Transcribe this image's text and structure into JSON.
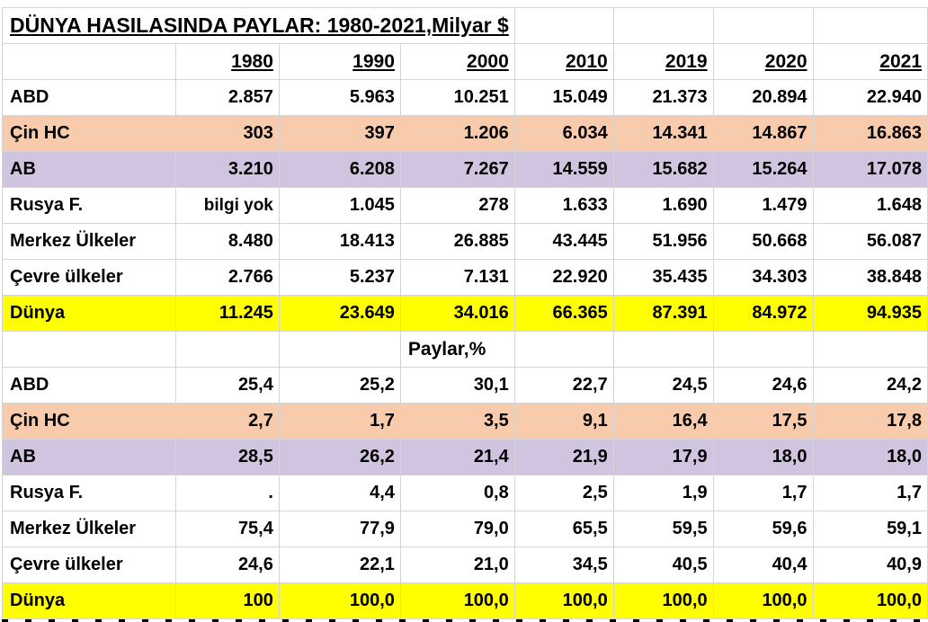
{
  "title": "DÜNYA HASILASINDA PAYLAR: 1980-2021,Milyar $",
  "years": [
    "1980",
    "1990",
    "2000",
    "2010",
    "2019",
    "2020",
    "2021"
  ],
  "colors": {
    "china_row": "#f8cbad",
    "eu_row": "#d0c4e0",
    "world_row": "#ffff00"
  },
  "gdp_rows": [
    {
      "label": "ABD",
      "values": [
        "2.857",
        "5.963",
        "10.251",
        "15.049",
        "21.373",
        "20.894",
        "22.940"
      ]
    },
    {
      "label": "Çin HC",
      "values": [
        "303",
        "397",
        "1.206",
        "6.034",
        "14.341",
        "14.867",
        "16.863"
      ]
    },
    {
      "label": "AB",
      "values": [
        "3.210",
        "6.208",
        "7.267",
        "14.559",
        "15.682",
        "15.264",
        "17.078"
      ]
    },
    {
      "label": "Rusya F.",
      "values": [
        "bilgi yok",
        "1.045",
        "278",
        "1.633",
        "1.690",
        "1.479",
        "1.648"
      ]
    },
    {
      "label": "Merkez Ülkeler",
      "values": [
        "8.480",
        "18.413",
        "26.885",
        "43.445",
        "51.956",
        "50.668",
        "56.087"
      ]
    },
    {
      "label": "Çevre ülkeler",
      "values": [
        "2.766",
        "5.237",
        "7.131",
        "22.920",
        "35.435",
        "34.303",
        "38.848"
      ]
    },
    {
      "label": "Dünya",
      "values": [
        "11.245",
        "23.649",
        "34.016",
        "66.365",
        "87.391",
        "84.972",
        "94.935"
      ]
    }
  ],
  "share_heading": "Paylar,%",
  "share_rows": [
    {
      "label": "ABD",
      "values": [
        "25,4",
        "25,2",
        "30,1",
        "22,7",
        "24,5",
        "24,6",
        "24,2"
      ]
    },
    {
      "label": "Çin HC",
      "values": [
        "2,7",
        "1,7",
        "3,5",
        "9,1",
        "16,4",
        "17,5",
        "17,8"
      ]
    },
    {
      "label": "AB",
      "values": [
        "28,5",
        "26,2",
        "21,4",
        "21,9",
        "17,9",
        "18,0",
        "18,0"
      ]
    },
    {
      "label": "Rusya F.",
      "values": [
        ".",
        "4,4",
        "0,8",
        "2,5",
        "1,9",
        "1,7",
        "1,7"
      ]
    },
    {
      "label": "Merkez Ülkeler",
      "values": [
        "75,4",
        "77,9",
        "79,0",
        "65,5",
        "59,5",
        "59,6",
        "59,1"
      ]
    },
    {
      "label": "Çevre ülkeler",
      "values": [
        "24,6",
        "22,1",
        "21,0",
        "34,5",
        "40,5",
        "40,4",
        "40,9"
      ]
    },
    {
      "label": "Dünya",
      "values": [
        "100",
        "100,0",
        "100,0",
        "100,0",
        "100,0",
        "100,0",
        "100,0"
      ]
    }
  ]
}
